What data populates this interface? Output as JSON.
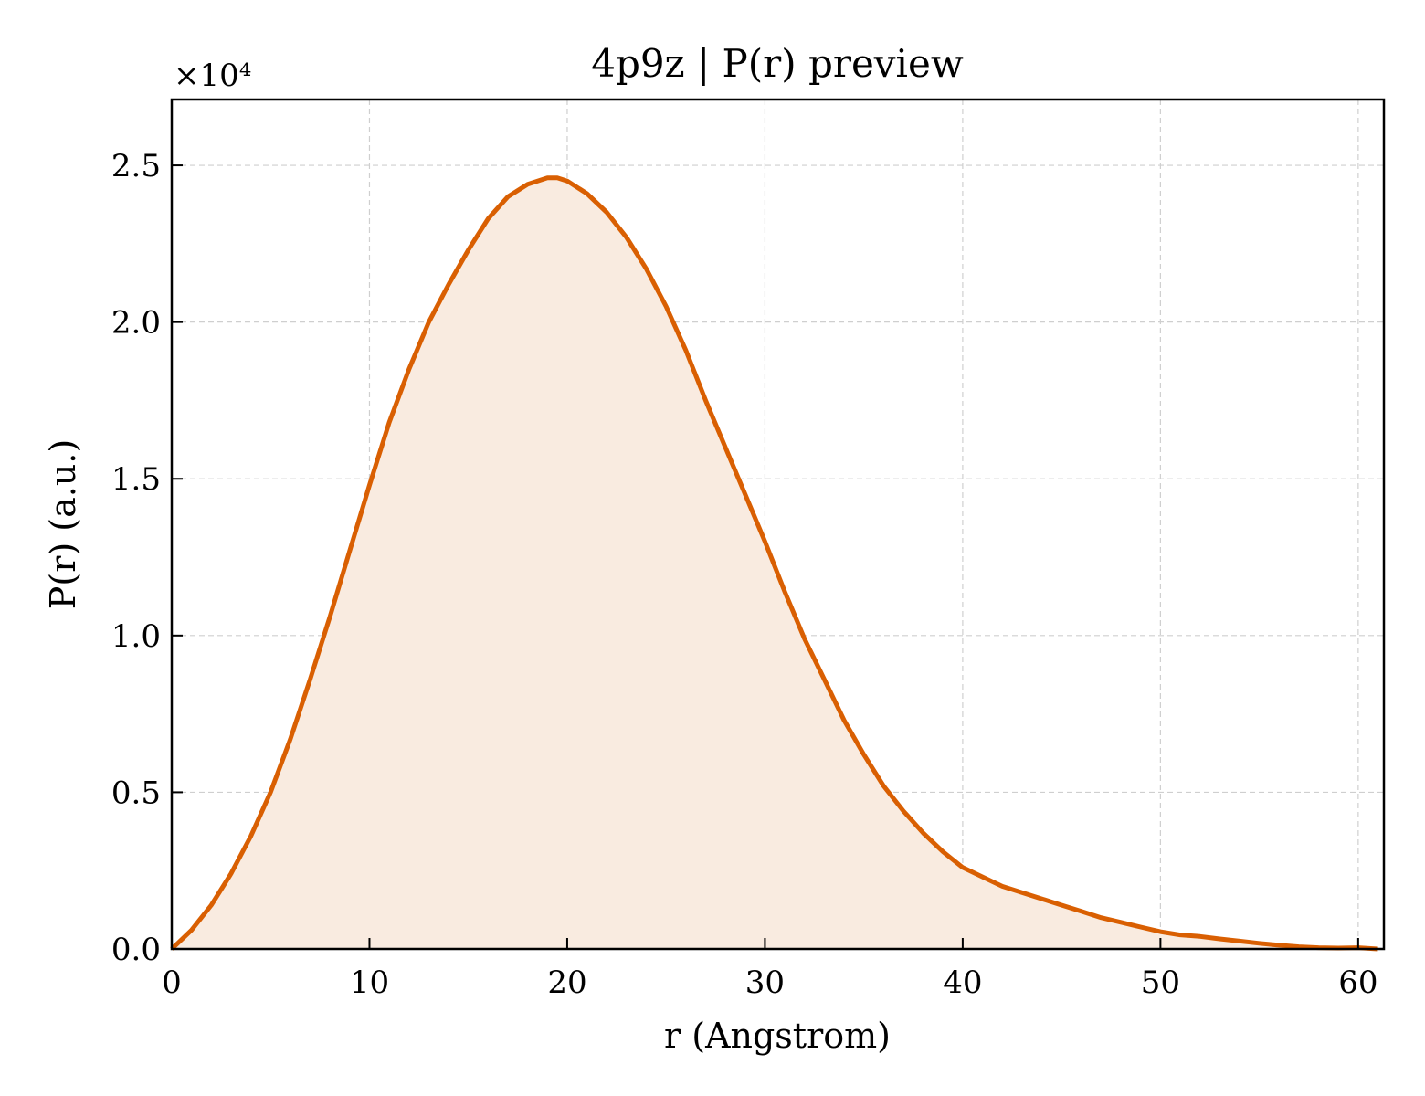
{
  "chart_data": {
    "type": "area",
    "title": "4p9z | P(r) preview",
    "xlabel": "r (Angstrom)",
    "ylabel": "P(r) (a.u.)",
    "y_scale_label": "×10⁴",
    "xlim": [
      0,
      61.3
    ],
    "ylim": [
      0,
      2.71
    ],
    "xticks": [
      0,
      10,
      20,
      30,
      40,
      50,
      60
    ],
    "xtick_labels": [
      "0",
      "10",
      "20",
      "30",
      "40",
      "50",
      "60"
    ],
    "yticks": [
      0.0,
      0.5,
      1.0,
      1.5,
      2.0,
      2.5
    ],
    "ytick_labels": [
      "0.0",
      "0.5",
      "1.0",
      "1.5",
      "2.0",
      "2.5"
    ],
    "grid": true,
    "line_color": "#d95f02",
    "fill_color": "#f9ebe0",
    "series": [
      {
        "x": [
          0,
          1,
          2,
          3,
          4,
          5,
          6,
          7,
          8,
          9,
          10,
          11,
          12,
          13,
          14,
          15,
          16,
          17,
          18,
          19,
          19.5,
          20,
          21,
          22,
          23,
          24,
          25,
          26,
          27,
          28,
          29,
          30,
          31,
          32,
          33,
          34,
          35,
          36,
          37,
          38,
          39,
          40,
          41,
          42,
          43,
          44,
          45,
          46,
          47,
          48,
          49,
          50,
          51,
          52,
          53,
          54,
          55,
          56,
          57,
          58,
          59,
          60,
          61
        ],
        "y": [
          0.0,
          0.06,
          0.14,
          0.24,
          0.36,
          0.5,
          0.67,
          0.86,
          1.06,
          1.27,
          1.48,
          1.68,
          1.85,
          2.0,
          2.12,
          2.23,
          2.33,
          2.4,
          2.44,
          2.46,
          2.46,
          2.45,
          2.41,
          2.35,
          2.27,
          2.17,
          2.05,
          1.91,
          1.75,
          1.6,
          1.45,
          1.3,
          1.14,
          0.99,
          0.86,
          0.73,
          0.62,
          0.52,
          0.44,
          0.37,
          0.31,
          0.26,
          0.23,
          0.2,
          0.18,
          0.16,
          0.14,
          0.12,
          0.1,
          0.085,
          0.07,
          0.055,
          0.045,
          0.04,
          0.032,
          0.025,
          0.018,
          0.012,
          0.007,
          0.004,
          0.003,
          0.004,
          0.0
        ]
      }
    ]
  }
}
